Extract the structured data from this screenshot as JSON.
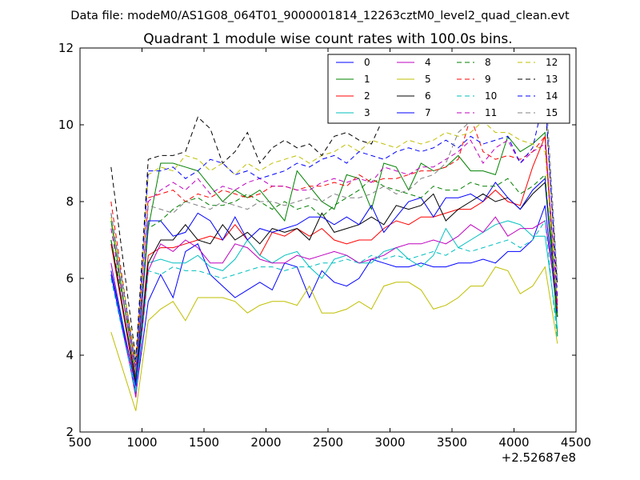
{
  "figure": {
    "suptitle": "Data file: modeM0/AS1G08_064T01_9000001814_12263cztM0_level2_quad_clean.evt"
  },
  "chart_data": {
    "type": "line",
    "title": "Quadrant 1 module wise count rates with 100.0s bins.",
    "xlabel": "",
    "ylabel": "",
    "x_offset_label": "+2.52687e8",
    "xlim": [
      500,
      4500
    ],
    "ylim": [
      2,
      12
    ],
    "x_ticks": [
      500,
      1000,
      1500,
      2000,
      2500,
      3000,
      3500,
      4000,
      4500
    ],
    "y_ticks": [
      2,
      4,
      6,
      8,
      10,
      12
    ],
    "grid": false,
    "legend": {
      "placement": "top-right",
      "columns": 4
    },
    "x": [
      750,
      950,
      1050,
      1150,
      1250,
      1350,
      1450,
      1550,
      1650,
      1750,
      1850,
      1950,
      2050,
      2150,
      2250,
      2350,
      2450,
      2550,
      2650,
      2750,
      2850,
      2950,
      3050,
      3150,
      3250,
      3350,
      3450,
      3550,
      3650,
      3750,
      3850,
      3950,
      4050,
      4150,
      4250,
      4350
    ],
    "series": [
      {
        "name": "0",
        "color": "#0000ff",
        "dash": "solid",
        "values": [
          6.1,
          3.0,
          5.4,
          6.1,
          5.5,
          6.7,
          6.9,
          6.1,
          5.8,
          5.5,
          5.7,
          5.9,
          5.7,
          6.4,
          6.3,
          5.5,
          6.2,
          5.9,
          5.8,
          6.0,
          6.5,
          6.4,
          6.3,
          6.3,
          6.4,
          6.3,
          6.3,
          6.4,
          6.4,
          6.5,
          6.4,
          6.7,
          6.7,
          7.0,
          7.9,
          5.0
        ]
      },
      {
        "name": "1",
        "color": "#008000",
        "dash": "solid",
        "values": [
          7.5,
          3.4,
          7.3,
          9.0,
          9.0,
          8.9,
          8.8,
          8.4,
          8.0,
          8.3,
          8.1,
          8.3,
          7.9,
          7.5,
          8.8,
          8.4,
          8.0,
          7.8,
          8.7,
          8.6,
          7.8,
          9.0,
          8.9,
          8.3,
          9.0,
          8.8,
          8.9,
          9.2,
          8.8,
          8.8,
          8.7,
          9.7,
          9.3,
          9.5,
          9.8,
          4.5
        ]
      },
      {
        "name": "2",
        "color": "#ff0000",
        "dash": "solid",
        "values": [
          6.9,
          3.2,
          6.6,
          6.8,
          6.8,
          6.9,
          7.0,
          7.1,
          7.0,
          7.4,
          7.0,
          6.6,
          7.2,
          7.1,
          7.3,
          7.1,
          7.3,
          7.0,
          6.9,
          7.0,
          7.0,
          7.3,
          7.5,
          7.4,
          7.6,
          7.6,
          7.7,
          7.8,
          7.8,
          8.0,
          8.3,
          8.0,
          7.9,
          8.9,
          9.7,
          5.3
        ]
      },
      {
        "name": "3",
        "color": "#00bfbf",
        "dash": "solid",
        "values": [
          6.4,
          3.1,
          6.4,
          6.5,
          6.4,
          6.4,
          6.6,
          6.3,
          6.2,
          6.5,
          7.0,
          6.6,
          6.4,
          6.6,
          6.7,
          6.3,
          6.0,
          6.5,
          6.6,
          6.4,
          6.4,
          6.7,
          6.8,
          6.5,
          6.3,
          6.6,
          7.3,
          6.8,
          7.0,
          7.2,
          7.4,
          7.5,
          7.4,
          7.1,
          7.1,
          4.7
        ]
      },
      {
        "name": "4",
        "color": "#bf00bf",
        "dash": "solid",
        "values": [
          6.4,
          2.9,
          6.2,
          6.9,
          6.7,
          7.0,
          6.8,
          6.4,
          6.4,
          6.9,
          6.8,
          6.5,
          6.4,
          6.4,
          6.6,
          6.5,
          6.6,
          6.7,
          6.6,
          6.4,
          6.5,
          6.6,
          6.8,
          6.9,
          6.9,
          7.0,
          6.9,
          7.1,
          7.4,
          7.2,
          7.6,
          7.1,
          7.3,
          7.3,
          7.5,
          5.3
        ]
      },
      {
        "name": "5",
        "color": "#bfbf00",
        "dash": "solid",
        "values": [
          4.6,
          2.55,
          4.9,
          5.2,
          5.4,
          4.9,
          5.5,
          5.5,
          5.5,
          5.4,
          5.1,
          5.3,
          5.4,
          5.4,
          5.3,
          5.8,
          5.1,
          5.1,
          5.2,
          5.4,
          5.2,
          5.8,
          5.9,
          5.9,
          5.7,
          5.2,
          5.3,
          5.5,
          5.8,
          5.8,
          6.3,
          6.2,
          5.6,
          5.8,
          6.3,
          4.3
        ]
      },
      {
        "name": "6",
        "color": "#000000",
        "dash": "solid",
        "values": [
          7.0,
          3.3,
          6.4,
          7.0,
          7.0,
          7.4,
          7.0,
          6.9,
          7.4,
          7.0,
          7.2,
          6.9,
          7.3,
          7.2,
          7.3,
          7.0,
          7.7,
          7.2,
          7.3,
          7.4,
          7.6,
          7.4,
          7.9,
          7.8,
          7.9,
          8.2,
          7.5,
          7.8,
          8.0,
          8.2,
          8.0,
          8.1,
          7.8,
          8.2,
          8.5,
          5.0
        ]
      },
      {
        "name": "7",
        "color": "#0000ff",
        "dash": "solid",
        "values": [
          6.2,
          3.2,
          7.5,
          7.5,
          7.1,
          7.2,
          7.7,
          7.5,
          7.0,
          7.6,
          7.0,
          7.3,
          7.2,
          7.3,
          7.4,
          7.6,
          7.6,
          7.4,
          7.6,
          7.4,
          7.9,
          7.2,
          7.6,
          8.0,
          8.1,
          7.6,
          8.1,
          8.1,
          8.2,
          8.0,
          8.5,
          8.1,
          7.8,
          8.3,
          8.6,
          5.1
        ]
      },
      {
        "name": "8",
        "color": "#008000",
        "dash": "dash",
        "values": [
          7.0,
          3.8,
          7.3,
          7.5,
          7.8,
          8.0,
          8.1,
          7.9,
          7.9,
          8.0,
          8.2,
          8.0,
          7.8,
          8.0,
          7.8,
          7.9,
          7.6,
          7.9,
          8.1,
          8.3,
          8.6,
          8.4,
          8.3,
          8.2,
          8.1,
          8.4,
          8.3,
          8.3,
          8.5,
          8.4,
          8.4,
          8.6,
          8.2,
          8.4,
          8.7,
          5.0
        ]
      },
      {
        "name": "9",
        "color": "#ff0000",
        "dash": "dash",
        "values": [
          8.0,
          3.6,
          8.1,
          8.2,
          8.3,
          8.0,
          8.2,
          8.1,
          8.3,
          8.2,
          8.1,
          8.2,
          8.4,
          8.4,
          8.3,
          8.4,
          8.4,
          8.5,
          8.4,
          8.7,
          8.5,
          8.6,
          8.6,
          8.7,
          8.8,
          8.8,
          8.9,
          9.1,
          10.2,
          9.3,
          9.1,
          9.2,
          9.1,
          9.3,
          9.7,
          5.2
        ]
      },
      {
        "name": "10",
        "color": "#00bfbf",
        "dash": "dash",
        "values": [
          6.0,
          3.0,
          6.2,
          6.1,
          6.3,
          6.2,
          6.2,
          6.1,
          6.0,
          6.1,
          6.2,
          6.3,
          6.3,
          6.2,
          6.3,
          6.3,
          6.4,
          6.4,
          6.5,
          6.4,
          6.6,
          6.5,
          6.6,
          6.5,
          6.6,
          6.7,
          6.6,
          6.8,
          6.7,
          6.8,
          6.9,
          7.0,
          6.8,
          7.0,
          7.5,
          4.4
        ]
      },
      {
        "name": "11",
        "color": "#bf00bf",
        "dash": "dash",
        "values": [
          7.3,
          3.5,
          8.0,
          8.3,
          8.5,
          8.3,
          8.6,
          8.2,
          8.4,
          8.3,
          8.5,
          8.6,
          8.4,
          8.4,
          8.3,
          8.3,
          8.5,
          8.6,
          8.5,
          8.6,
          8.5,
          8.9,
          8.8,
          8.7,
          8.9,
          8.9,
          9.1,
          9.3,
          9.6,
          9.0,
          9.4,
          9.6,
          9.0,
          9.3,
          9.5,
          5.4
        ]
      },
      {
        "name": "12",
        "color": "#bfbf00",
        "dash": "dash",
        "values": [
          7.6,
          3.9,
          8.7,
          8.9,
          8.8,
          9.2,
          9.1,
          8.8,
          9.0,
          8.7,
          9.0,
          8.8,
          9.0,
          9.1,
          9.2,
          9.0,
          9.2,
          9.3,
          9.5,
          9.3,
          9.6,
          9.5,
          9.4,
          9.6,
          9.5,
          9.6,
          9.8,
          9.7,
          9.8,
          10.1,
          9.8,
          9.8,
          9.6,
          9.5,
          9.3,
          5.4
        ]
      },
      {
        "name": "13",
        "color": "#000000",
        "dash": "dash",
        "values": [
          8.9,
          3.9,
          9.1,
          9.2,
          9.2,
          9.3,
          10.2,
          9.9,
          9.0,
          9.3,
          9.8,
          9.0,
          9.4,
          9.6,
          9.4,
          9.5,
          9.2,
          9.7,
          9.8,
          9.6,
          9.5,
          10.2,
          10.5,
          10.2,
          10.1,
          10.3,
          10.5,
          10.2,
          10.3,
          10.6,
          10.4,
          10.2,
          10.3,
          10.5,
          10.6,
          5.8
        ]
      },
      {
        "name": "14",
        "color": "#0000ff",
        "dash": "dash",
        "values": [
          7.7,
          3.7,
          8.8,
          8.8,
          8.9,
          8.6,
          8.8,
          9.1,
          9.0,
          8.7,
          8.8,
          8.6,
          8.7,
          8.8,
          9.0,
          8.9,
          9.1,
          9.2,
          9.0,
          9.3,
          9.2,
          9.1,
          9.3,
          9.4,
          9.3,
          9.4,
          9.6,
          9.4,
          9.7,
          9.5,
          9.6,
          9.7,
          9.0,
          9.4,
          10.8,
          5.5
        ]
      },
      {
        "name": "15",
        "color": "#808080",
        "dash": "dash",
        "values": [
          7.7,
          3.6,
          7.9,
          7.8,
          7.7,
          8.0,
          7.9,
          7.8,
          8.0,
          7.9,
          7.8,
          8.0,
          8.0,
          7.9,
          8.0,
          8.1,
          8.0,
          8.2,
          8.1,
          8.1,
          8.2,
          8.4,
          8.2,
          8.3,
          8.6,
          8.7,
          9.0,
          9.8,
          10.1,
          10.1,
          10.1,
          10.4,
          10.5,
          10.7,
          11.2,
          6.0
        ]
      }
    ]
  }
}
